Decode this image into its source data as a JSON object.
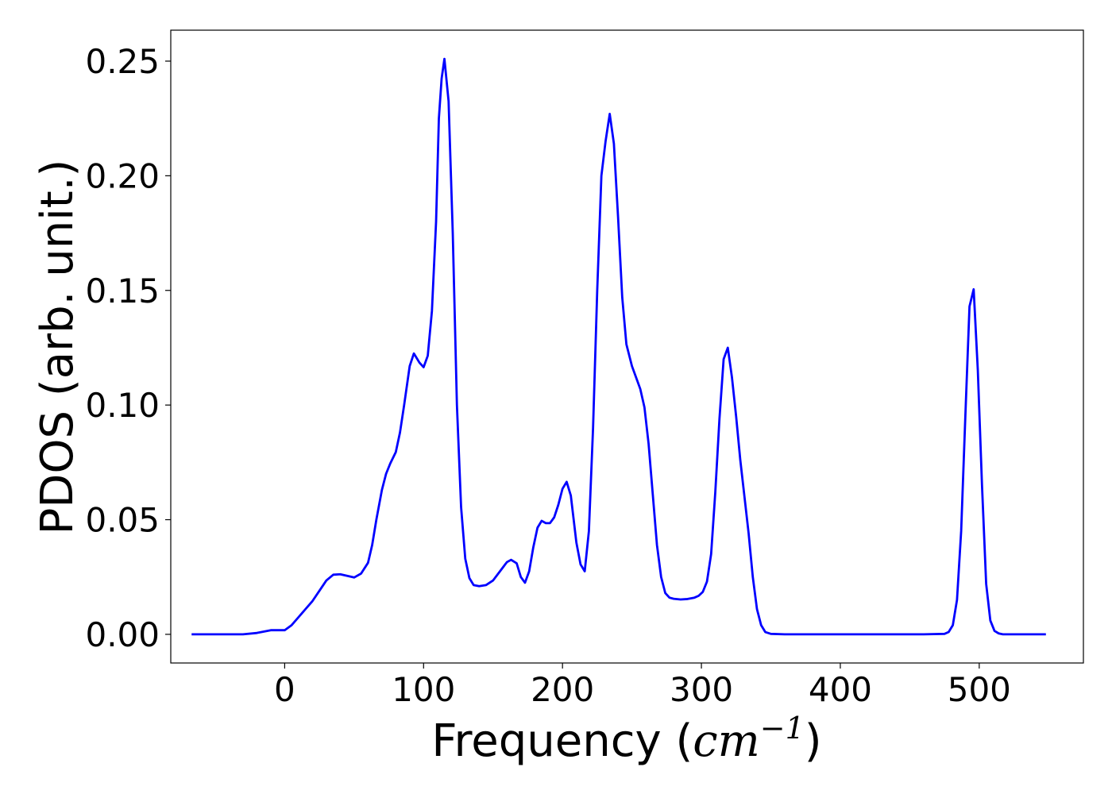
{
  "chart_data": {
    "type": "line",
    "title": "",
    "xlabel_main": "Frequency (",
    "xlabel_math": "cm",
    "xlabel_sup": "−1",
    "xlabel_close": ")",
    "ylabel": "PDOS (arb. unit.)",
    "xlim": [
      -82,
      575
    ],
    "ylim": [
      -0.0125,
      0.2635
    ],
    "xticks": [
      0,
      100,
      200,
      300,
      400,
      500
    ],
    "xtick_labels": [
      "0",
      "100",
      "200",
      "300",
      "400",
      "500"
    ],
    "yticks": [
      0,
      0.05,
      0.1,
      0.15,
      0.2,
      0.25
    ],
    "ytick_labels": [
      "0.00",
      "0.05",
      "0.10",
      "0.15",
      "0.20",
      "0.25"
    ],
    "grid": false,
    "line_color": "#0000ff",
    "series": [
      {
        "x": [
          -67,
          -30,
          -20,
          -10,
          0,
          5,
          10,
          15,
          20,
          25,
          30,
          35,
          40,
          45,
          50,
          55,
          60,
          63,
          66,
          70,
          73,
          76,
          80,
          83,
          86,
          90,
          93,
          97,
          100,
          103,
          106,
          109,
          111,
          113,
          115,
          118,
          121,
          124,
          127,
          130,
          133,
          136,
          140,
          145,
          150,
          155,
          160,
          163,
          167,
          170,
          173,
          176,
          179,
          182,
          185,
          188,
          191,
          194,
          197,
          200,
          203,
          206,
          210,
          213,
          216,
          219,
          222,
          225,
          228,
          231,
          234,
          237,
          240,
          243,
          246,
          250,
          253,
          256,
          259,
          262,
          265,
          268,
          271,
          274,
          277,
          280,
          285,
          290,
          295,
          298,
          301,
          304,
          307,
          310,
          313,
          316,
          319,
          322,
          325,
          328,
          331,
          334,
          337,
          340,
          343,
          346,
          350,
          360,
          380,
          400,
          420,
          440,
          460,
          475,
          478,
          481,
          484,
          487,
          490,
          493,
          496,
          499,
          502,
          505,
          508,
          511,
          514,
          517,
          520,
          548
        ],
        "y": [
          0.0,
          0.0,
          0.0006,
          0.0018,
          0.0018,
          0.004,
          0.0075,
          0.011,
          0.0145,
          0.019,
          0.0235,
          0.026,
          0.0262,
          0.0255,
          0.0248,
          0.0265,
          0.0312,
          0.039,
          0.05,
          0.063,
          0.07,
          0.0745,
          0.0795,
          0.088,
          0.1,
          0.117,
          0.1225,
          0.1185,
          0.1165,
          0.1215,
          0.141,
          0.18,
          0.225,
          0.2425,
          0.251,
          0.2325,
          0.175,
          0.1,
          0.0555,
          0.033,
          0.0245,
          0.0215,
          0.021,
          0.0215,
          0.0235,
          0.0275,
          0.0315,
          0.0325,
          0.031,
          0.025,
          0.0225,
          0.0275,
          0.038,
          0.0465,
          0.0495,
          0.0485,
          0.0485,
          0.051,
          0.0565,
          0.0635,
          0.0665,
          0.0605,
          0.04,
          0.0305,
          0.0275,
          0.045,
          0.09,
          0.15,
          0.2,
          0.215,
          0.227,
          0.214,
          0.182,
          0.147,
          0.1265,
          0.117,
          0.112,
          0.107,
          0.099,
          0.083,
          0.061,
          0.039,
          0.025,
          0.018,
          0.016,
          0.0155,
          0.0152,
          0.0154,
          0.016,
          0.0168,
          0.0185,
          0.023,
          0.035,
          0.062,
          0.094,
          0.12,
          0.125,
          0.112,
          0.095,
          0.076,
          0.06,
          0.044,
          0.025,
          0.011,
          0.004,
          0.001,
          0.0002,
          0.0,
          0.0,
          0.0,
          0.0,
          0.0,
          0.0,
          0.0002,
          0.001,
          0.004,
          0.015,
          0.045,
          0.095,
          0.143,
          0.1505,
          0.115,
          0.065,
          0.022,
          0.006,
          0.0015,
          0.0004,
          0.0,
          0.0,
          0.0
        ]
      }
    ]
  }
}
